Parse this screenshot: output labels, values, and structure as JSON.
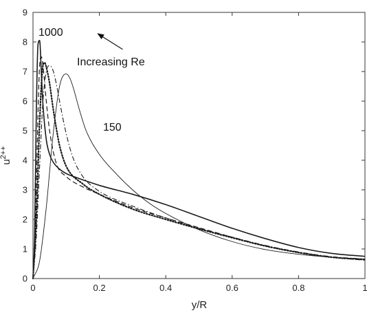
{
  "chart_data": {
    "type": "line",
    "title": "",
    "xlabel": "y/R",
    "ylabel_base": "u",
    "ylabel_sup": "2++",
    "xlim": [
      0,
      1
    ],
    "ylim": [
      0,
      9
    ],
    "xticks": [
      0,
      0.2,
      0.4,
      0.6,
      0.8,
      1
    ],
    "yticks": [
      0,
      1,
      2,
      3,
      4,
      5,
      6,
      7,
      8,
      9
    ],
    "grid": false,
    "legend": "none",
    "annotations": {
      "high_re_label": "1000",
      "low_re_label": "150",
      "arrow_label": "Increasing Re"
    },
    "arrow": {
      "from": [
        0.27,
        7.75
      ],
      "to": [
        0.195,
        8.28
      ]
    },
    "series": [
      {
        "style": "solid",
        "x": [
          0,
          0.005,
          0.01,
          0.015,
          0.02,
          0.025,
          0.03,
          0.04,
          0.05,
          0.06,
          0.08,
          0.1,
          0.13,
          0.16,
          0.2,
          0.3,
          0.4,
          0.5,
          0.6,
          0.7,
          0.8,
          0.9,
          1.0
        ],
        "y": [
          0,
          1.5,
          5.6,
          7.9,
          8.05,
          7.0,
          5.9,
          4.7,
          4.2,
          3.95,
          3.7,
          3.55,
          3.42,
          3.3,
          3.15,
          2.85,
          2.5,
          2.1,
          1.7,
          1.35,
          1.05,
          0.85,
          0.75
        ]
      },
      {
        "style": "dashed",
        "x": [
          0,
          0.005,
          0.01,
          0.02,
          0.025,
          0.03,
          0.04,
          0.05,
          0.07,
          0.1,
          0.15,
          0.2,
          0.3,
          0.4,
          0.5,
          0.6,
          0.7,
          0.8,
          0.9,
          1.0
        ],
        "y": [
          0,
          0.9,
          3.2,
          7.2,
          7.5,
          7.2,
          6.0,
          5.0,
          3.9,
          3.45,
          3.1,
          2.85,
          2.4,
          2.05,
          1.72,
          1.4,
          1.1,
          0.88,
          0.72,
          0.62
        ]
      },
      {
        "style": "dotted",
        "x": [
          0,
          0.01,
          0.02,
          0.03,
          0.035,
          0.04,
          0.05,
          0.06,
          0.07,
          0.08,
          0.1,
          0.15,
          0.2,
          0.3,
          0.4,
          0.5,
          0.6,
          0.7,
          0.8,
          0.9,
          1.0
        ],
        "y": [
          0,
          2.0,
          5.3,
          7.2,
          7.3,
          7.15,
          6.6,
          5.8,
          5.1,
          4.5,
          3.8,
          3.2,
          2.85,
          2.35,
          2.0,
          1.68,
          1.38,
          1.1,
          0.88,
          0.72,
          0.64
        ]
      },
      {
        "style": "dashdot",
        "x": [
          0,
          0.01,
          0.02,
          0.03,
          0.04,
          0.05,
          0.06,
          0.07,
          0.08,
          0.1,
          0.12,
          0.15,
          0.2,
          0.3,
          0.4,
          0.5,
          0.6,
          0.7,
          0.8,
          0.9,
          1.0
        ],
        "y": [
          0,
          1.4,
          3.8,
          6.0,
          7.0,
          7.2,
          7.05,
          6.6,
          6.0,
          4.9,
          4.1,
          3.45,
          2.95,
          2.45,
          2.05,
          1.7,
          1.4,
          1.12,
          0.9,
          0.74,
          0.66
        ]
      },
      {
        "style": "thin-solid",
        "x": [
          0,
          0.02,
          0.04,
          0.06,
          0.08,
          0.1,
          0.11,
          0.12,
          0.14,
          0.16,
          0.2,
          0.25,
          0.3,
          0.35,
          0.4,
          0.5,
          0.6,
          0.7,
          0.8,
          0.9,
          1.0
        ],
        "y": [
          0,
          0.6,
          2.4,
          4.8,
          6.5,
          6.92,
          6.8,
          6.5,
          5.7,
          5.0,
          4.2,
          3.55,
          3.0,
          2.55,
          2.2,
          1.65,
          1.25,
          0.98,
          0.82,
          0.72,
          0.66
        ]
      }
    ]
  }
}
